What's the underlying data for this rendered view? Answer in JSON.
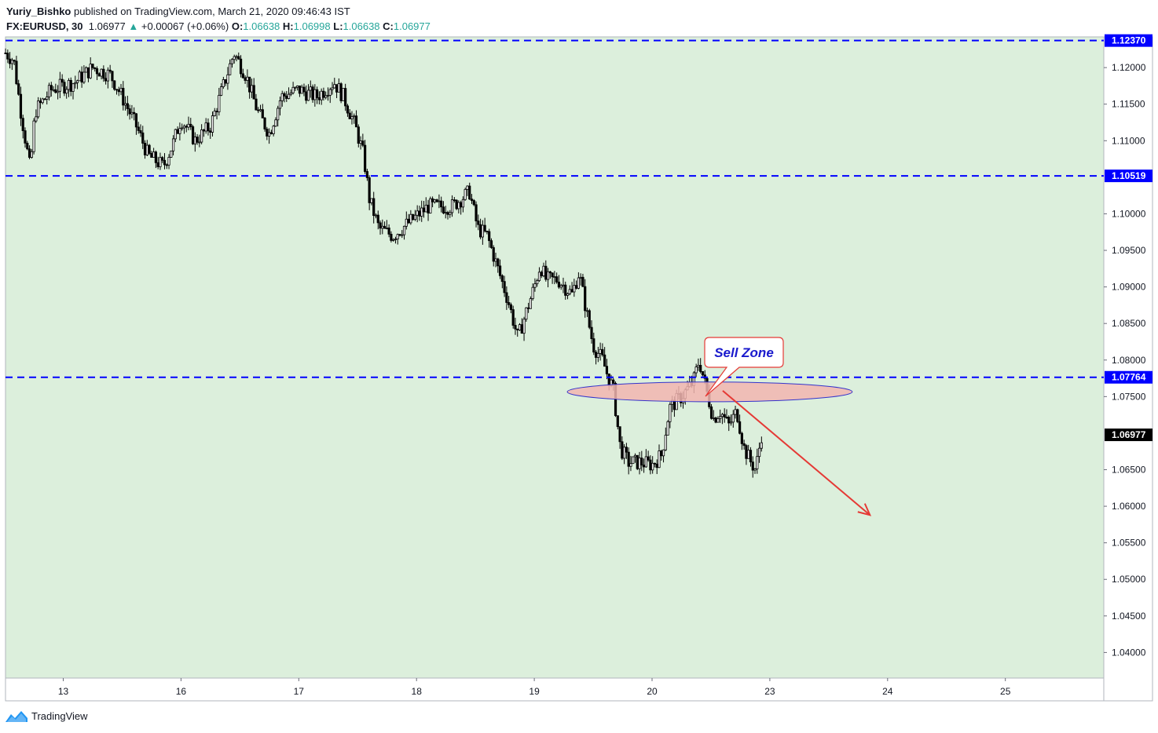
{
  "header": {
    "author": "Yuriy_Bishko",
    "published_text": "published on TradingView.com, March 21, 2020 09:46:43 IST",
    "symbol": "FX:EURUSD, 30",
    "last": "1.06977",
    "change": "+0.00067 (+0.06%)",
    "o_label": "O:",
    "o_value": "1.06638",
    "h_label": "H:",
    "h_value": "1.06998",
    "l_label": "L:",
    "l_value": "1.06638",
    "c_label": "C:",
    "c_value": "1.06977"
  },
  "footer": {
    "brand": "TradingView"
  },
  "colors": {
    "plot_bg": "#dcefdc",
    "candle": "#000000",
    "level_line": "#0000ff",
    "zone_fill": "#f2b5b0",
    "zone_stroke": "#3333cc",
    "arrow": "#e53935",
    "callout_border": "#e53935",
    "callout_text": "#1a1acd",
    "last_price_bg": "#000000"
  },
  "chart_data": {
    "type": "candlestick",
    "symbol": "FX:EURUSD",
    "interval": "30",
    "ylim": [
      1.0365,
      1.1242
    ],
    "y_ticks": [
      "1.12000",
      "1.11500",
      "1.11000",
      "1.10000",
      "1.09500",
      "1.09000",
      "1.08500",
      "1.08000",
      "1.07500",
      "1.06500",
      "1.06000",
      "1.05500",
      "1.05000",
      "1.04500",
      "1.04000"
    ],
    "x_ticks": [
      {
        "label": "13",
        "day": 0
      },
      {
        "label": "16",
        "day": 1
      },
      {
        "label": "17",
        "day": 2
      },
      {
        "label": "18",
        "day": 3
      },
      {
        "label": "19",
        "day": 4
      },
      {
        "label": "20",
        "day": 5
      },
      {
        "label": "23",
        "day": 6
      },
      {
        "label": "24",
        "day": 7
      },
      {
        "label": "25",
        "day": 8
      }
    ],
    "levels": [
      {
        "value": 1.1237,
        "label": "1.12370"
      },
      {
        "value": 1.10519,
        "label": "1.10519"
      },
      {
        "value": 1.07764,
        "label": "1.07764"
      }
    ],
    "last_price": {
      "value": 1.06977,
      "label": "1.06977"
    },
    "price_path": [
      [
        -0.49,
        1.122
      ],
      [
        -0.42,
        1.121
      ],
      [
        -0.36,
        1.114
      ],
      [
        -0.28,
        1.106
      ],
      [
        -0.24,
        1.114
      ],
      [
        -0.1,
        1.117
      ],
      [
        0.1,
        1.118
      ],
      [
        0.25,
        1.12
      ],
      [
        0.4,
        1.119
      ],
      [
        0.5,
        1.116
      ],
      [
        0.62,
        1.112
      ],
      [
        0.72,
        1.108
      ],
      [
        0.85,
        1.1065
      ],
      [
        0.93,
        1.1095
      ],
      [
        1.0,
        1.113
      ],
      [
        1.12,
        1.11
      ],
      [
        1.25,
        1.112
      ],
      [
        1.33,
        1.116
      ],
      [
        1.45,
        1.122
      ],
      [
        1.55,
        1.119
      ],
      [
        1.65,
        1.114
      ],
      [
        1.75,
        1.111
      ],
      [
        1.85,
        1.116
      ],
      [
        2.0,
        1.117
      ],
      [
        2.15,
        1.116
      ],
      [
        2.3,
        1.118
      ],
      [
        2.38,
        1.116
      ],
      [
        2.48,
        1.112
      ],
      [
        2.55,
        1.108
      ],
      [
        2.6,
        1.102
      ],
      [
        2.68,
        1.098
      ],
      [
        2.8,
        1.097
      ],
      [
        2.95,
        1.099
      ],
      [
        3.1,
        1.101
      ],
      [
        3.3,
        1.101
      ],
      [
        3.45,
        1.103
      ],
      [
        3.52,
        1.098
      ],
      [
        3.6,
        1.097
      ],
      [
        3.68,
        1.093
      ],
      [
        3.78,
        1.088
      ],
      [
        3.86,
        1.083
      ],
      [
        3.92,
        1.086
      ],
      [
        4.0,
        1.09
      ],
      [
        4.05,
        1.093
      ],
      [
        4.1,
        1.091
      ],
      [
        4.2,
        1.091
      ],
      [
        4.32,
        1.089
      ],
      [
        4.38,
        1.092
      ],
      [
        4.45,
        1.086
      ],
      [
        4.5,
        1.082
      ],
      [
        4.58,
        1.08
      ],
      [
        4.62,
        1.078
      ],
      [
        4.67,
        1.076
      ],
      [
        4.73,
        1.068
      ],
      [
        4.8,
        1.066
      ],
      [
        4.9,
        1.066
      ],
      [
        5.0,
        1.0657
      ],
      [
        5.08,
        1.067
      ],
      [
        5.15,
        1.0735
      ],
      [
        5.25,
        1.075
      ],
      [
        5.35,
        1.077
      ],
      [
        5.4,
        1.08
      ],
      [
        5.46,
        1.076
      ],
      [
        5.52,
        1.072
      ],
      [
        5.58,
        1.073
      ],
      [
        5.65,
        1.071
      ],
      [
        5.72,
        1.073
      ],
      [
        5.78,
        1.068
      ],
      [
        5.84,
        1.066
      ],
      [
        5.88,
        1.065
      ],
      [
        5.93,
        1.0698
      ]
    ],
    "annotations": {
      "sell_zone": {
        "text": "Sell Zone",
        "price_low": 1.0743,
        "price_high": 1.077,
        "day_from": 4.28,
        "day_to": 6.7
      },
      "arrow": {
        "from_day": 5.6,
        "from_price": 1.0758,
        "to_day": 6.85,
        "to_price": 1.0588
      }
    }
  }
}
